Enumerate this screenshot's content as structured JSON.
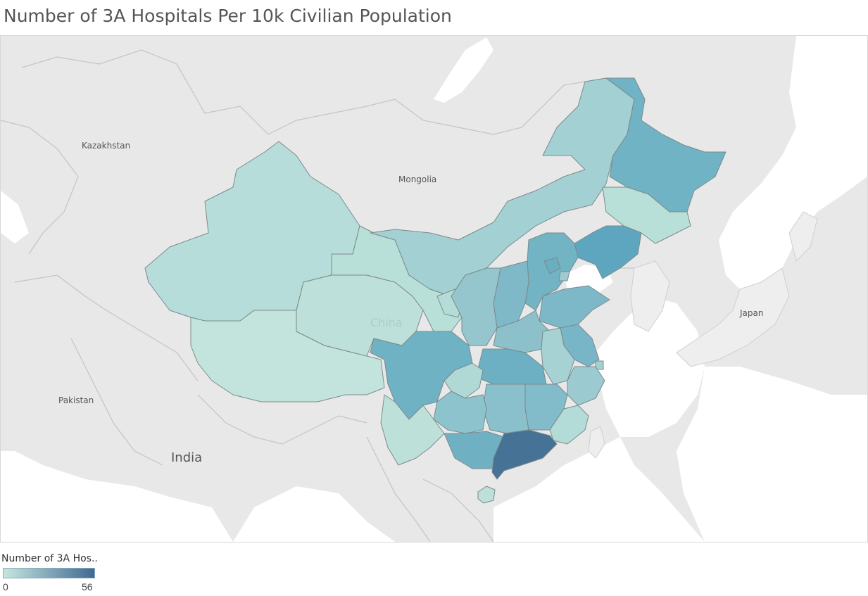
{
  "title": "Number of 3A Hospitals Per 10k Civilian Population",
  "legend": {
    "label": "Number of 3A Hos..",
    "min_label": "0",
    "max_label": "56",
    "color_low": "#c5e6df",
    "color_high": "#3f6992"
  },
  "country_labels": [
    {
      "id": "kazakhstan",
      "name": "Kazakhstan"
    },
    {
      "id": "mongolia",
      "name": "Mongolia"
    },
    {
      "id": "china",
      "name": "China"
    },
    {
      "id": "japan",
      "name": "Japan"
    },
    {
      "id": "pakistan",
      "name": "Pakistan"
    },
    {
      "id": "india",
      "name": "India"
    }
  ],
  "colors": {
    "land": "#e8e8e8",
    "water": "#ffffff",
    "border": "#c9c9c9"
  }
}
